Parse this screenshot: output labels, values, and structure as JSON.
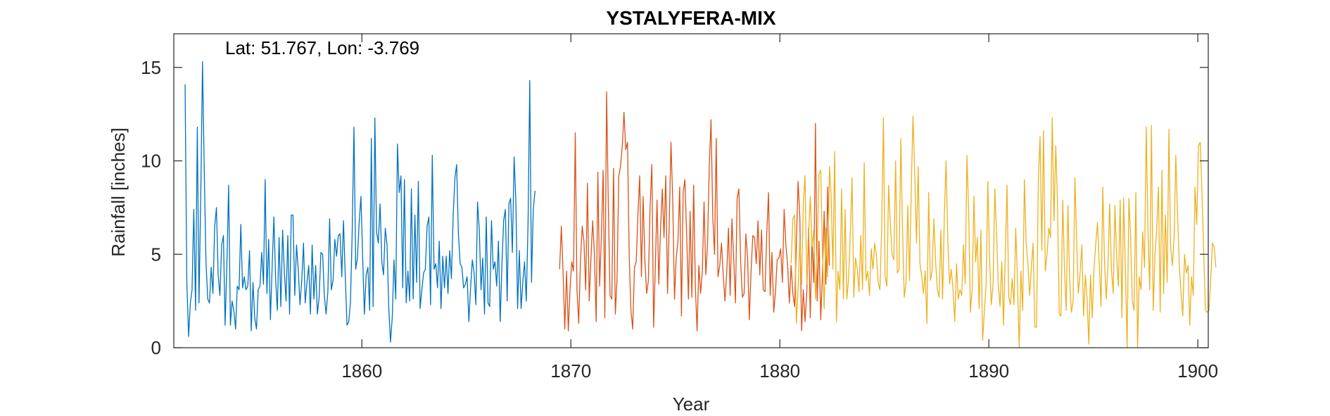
{
  "chart_data": {
    "type": "line",
    "title": "YSTALYFERA-MIX",
    "annotation": "Lat: 51.767, Lon: -3.769",
    "xlabel": "Year",
    "ylabel": "Rainfall [inches]",
    "xlim": [
      1851,
      1900.5
    ],
    "ylim": [
      0,
      16.8
    ],
    "xticks": [
      1860,
      1870,
      1880,
      1890,
      1900
    ],
    "yticks": [
      0,
      5,
      10,
      15
    ],
    "grid": false,
    "series": [
      {
        "color": "#0072BD",
        "start": 1851.54,
        "step": 0.0833,
        "values": [
          14.1,
          3.5,
          0.6,
          2.4,
          3.1,
          7.4,
          2.0,
          11.8,
          2.4,
          8.2,
          15.3,
          9.6,
          4.6,
          2.6,
          2.4,
          4.3,
          2.9,
          6.5,
          7.5,
          3.9,
          2.8,
          5.5,
          6.0,
          1.2,
          4.4,
          8.7,
          1.2,
          2.5,
          2.0,
          1.0,
          3.3,
          3.1,
          6.6,
          3.2,
          3.8,
          3.1,
          3.3,
          5.2,
          0.9,
          3.5,
          1.6,
          1.0,
          3.1,
          3.3,
          5.1,
          3.4,
          9.0,
          2.9,
          5.8,
          1.5,
          4.3,
          7.0,
          3.6,
          2.0,
          5.9,
          2.2,
          6.3,
          4.1,
          2.5,
          6.0,
          1.8,
          7.1,
          7.1,
          2.8,
          5.5,
          4.2,
          2.3,
          3.6,
          5.6,
          2.4,
          3.5,
          4.4,
          1.8,
          5.5,
          2.6,
          4.4,
          1.8,
          2.7,
          5.1,
          5.0,
          2.8,
          1.8,
          3.0,
          6.9,
          3.1,
          3.6,
          5.8,
          4.9,
          6.0,
          6.1,
          3.8,
          6.8,
          3.9,
          1.2,
          1.4,
          2.4,
          6.2,
          11.8,
          4.2,
          4.8,
          6.7,
          8.1,
          4.8,
          1.8,
          3.9,
          4.3,
          2.0,
          11.2,
          2.2,
          12.3,
          6.2,
          5.6,
          7.7,
          4.6,
          3.9,
          6.4,
          5.5,
          2.1,
          0.3,
          1.6,
          4.7,
          2.6,
          10.9,
          8.3,
          9.2,
          3.2,
          9.0,
          2.4,
          4.1,
          2.5,
          8.5,
          2.6,
          7.1,
          3.5,
          8.9,
          2.1,
          3.1,
          4.0,
          4.2,
          6.5,
          7.0,
          2.3,
          10.3,
          4.2,
          4.5,
          3.2,
          5.7,
          2.1,
          4.9,
          3.2,
          4.9,
          2.9,
          5.2,
          3.7,
          7.1,
          9.1,
          9.8,
          6.1,
          4.5,
          4.3,
          3.2,
          3.4,
          3.8,
          1.4,
          3.2,
          4.7,
          4.0,
          2.3,
          7.8,
          6.3,
          3.1,
          4.8,
          1.8,
          7.0,
          2.4,
          2.2,
          6.8,
          4.2,
          4.6,
          3.3,
          5.7,
          1.4,
          4.5,
          6.8,
          7.4,
          2.5,
          7.7,
          8.0,
          5.1,
          10.2,
          7.8,
          2.1,
          5.2,
          2.1,
          3.5,
          4.6,
          2.5,
          6.7,
          14.3,
          3.5,
          7.4,
          8.4
        ]
      },
      {
        "color": "#D95319",
        "start": 1869.46,
        "step": 0.0833,
        "values": [
          4.2,
          6.5,
          4.0,
          1.0,
          4.1,
          0.9,
          3.1,
          4.6,
          4.1,
          11.5,
          3.1,
          1.3,
          4.7,
          6.5,
          5.7,
          3.1,
          8.8,
          2.5,
          4.7,
          6.8,
          5.0,
          1.4,
          9.4,
          3.3,
          6.0,
          9.5,
          1.6,
          13.7,
          7.5,
          2.8,
          2.6,
          9.6,
          1.8,
          3.6,
          9.2,
          9.7,
          10.8,
          12.6,
          10.6,
          11.0,
          4.8,
          2.0,
          1.0,
          4.3,
          4.6,
          7.1,
          9.2,
          3.8,
          8.1,
          4.7,
          2.9,
          3.6,
          7.5,
          9.8,
          1.1,
          4.4,
          7.9,
          3.4,
          6.4,
          8.5,
          5.9,
          9.2,
          2.9,
          6.8,
          11.0,
          7.9,
          2.6,
          4.8,
          5.7,
          8.6,
          1.7,
          8.3,
          9.0,
          6.0,
          2.6,
          7.3,
          2.7,
          8.7,
          3.2,
          0.9,
          4.4,
          2.9,
          4.1,
          7.8,
          3.9,
          5.6,
          9.7,
          12.2,
          7.0,
          5.0,
          11.2,
          3.8,
          4.4,
          5.6,
          3.9,
          2.5,
          4.0,
          6.4,
          2.8,
          6.9,
          4.8,
          2.4,
          8.0,
          8.5,
          4.6,
          2.7,
          2.9,
          6.1,
          4.8,
          1.5,
          4.1,
          6.0,
          5.9,
          4.5,
          6.8,
          3.9,
          6.3,
          3.1,
          3.0,
          6.1,
          8.3,
          2.8,
          5.1,
          1.9,
          3.0,
          4.7,
          4.8,
          5.3,
          3.5,
          7.4,
          5.5,
          4.4,
          2.4,
          4.4,
          2.9,
          2.2,
          5.5,
          8.9,
          7.0,
          0.9,
          3.1,
          1.4,
          3.0,
          6.4,
          1.6,
          5.8,
          3.5,
          12.0,
          2.5,
          5.7,
          1.5,
          3.9,
          7.3,
          3.4,
          8.6,
          4.4
        ]
      },
      {
        "color": "#EDB120",
        "start": 1880.54,
        "step": 0.0833,
        "values": [
          4.5,
          6.9,
          7.1,
          1.3,
          3.1,
          5.8,
          3.4,
          7.8,
          9.2,
          3.4,
          6.0,
          8.1,
          5.4,
          6.3,
          2.6,
          5.3,
          9.3,
          9.5,
          5.0,
          2.1,
          6.4,
          3.8,
          9.7,
          8.1,
          4.2,
          10.5,
          1.4,
          4.1,
          3.1,
          8.5,
          2.6,
          7.4,
          2.6,
          3.7,
          6.1,
          9.1,
          2.7,
          4.8,
          4.2,
          3.0,
          6.0,
          3.1,
          9.9,
          3.6,
          4.1,
          2.8,
          5.3,
          4.2,
          5.6,
          4.9,
          3.5,
          3.1,
          6.4,
          12.3,
          3.8,
          3.3,
          8.7,
          6.6,
          5.0,
          4.7,
          10.0,
          4.0,
          4.2,
          11.2,
          6.2,
          2.7,
          3.5,
          7.6,
          3.6,
          8.4,
          12.4,
          9.3,
          5.6,
          9.7,
          4.5,
          3.8,
          2.9,
          4.1,
          1.3,
          8.3,
          3.6,
          4.1,
          6.9,
          4.6,
          3.1,
          2.7,
          6.3,
          2.6,
          7.0,
          10.0,
          5.7,
          3.4,
          4.2,
          3.1,
          1.4,
          4.5,
          2.6,
          3.1,
          2.8,
          5.5,
          3.4,
          10.3,
          7.2,
          1.9,
          3.1,
          8.1,
          4.6,
          5.9,
          2.1,
          6.3,
          0.4,
          1.9,
          3.4,
          8.9,
          4.7,
          2.3,
          3.4,
          8.5,
          6.1,
          3.4,
          2.2,
          4.6,
          1.2,
          4.9,
          8.7,
          2.7,
          2.3,
          3.7,
          2.3,
          6.4,
          3.7,
          0.0,
          4.1,
          2.0,
          9.0,
          5.6,
          4.5,
          2.8,
          4.3,
          5.6,
          1.1,
          1.1,
          8.9,
          11.3,
          5.2,
          11.6,
          4.1,
          5.0,
          6.4,
          5.9,
          12.3,
          6.8,
          10.8,
          7.9,
          1.8,
          1.7,
          7.9,
          4.3,
          2.0,
          7.6,
          3.6,
          1.9,
          2.5,
          9.1,
          5.8,
          2.9,
          4.0,
          5.5,
          1.7,
          3.9,
          2.6,
          0.2,
          3.9,
          1.6,
          4.3,
          5.6,
          6.7,
          4.5,
          2.2,
          8.6,
          4.7,
          2.6,
          4.4,
          7.7,
          4.2,
          2.9,
          7.6,
          4.8,
          3.3,
          7.9,
          1.6,
          8.0,
          4.3,
          0.0,
          8.0,
          6.0,
          2.5,
          2.0,
          8.3,
          0.0,
          3.8,
          3.1,
          6.2,
          4.3,
          11.8,
          6.2,
          3.1,
          11.9,
          2.0,
          5.0,
          6.3,
          8.6,
          1.9,
          9.5,
          2.9,
          7.1,
          3.5,
          11.7,
          5.4,
          4.4,
          5.9,
          10.3,
          7.1,
          4.4,
          2.9,
          1.7,
          5.0,
          4.0,
          4.4,
          1.2,
          3.8,
          2.8,
          8.6,
          6.6,
          10.8,
          11.0,
          8.3,
          5.1,
          2.0,
          1.9,
          2.0,
          3.6,
          5.6,
          5.4,
          4.3
        ]
      }
    ]
  }
}
